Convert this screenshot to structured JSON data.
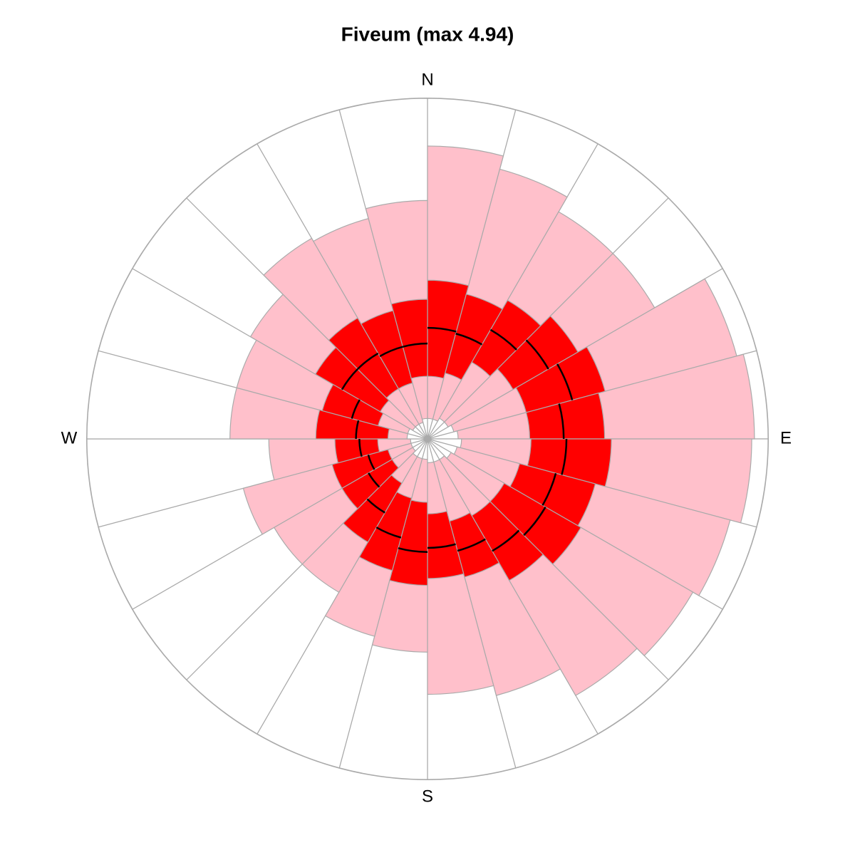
{
  "chart_data": {
    "type": "rose",
    "title": "Fiveum (max 4.94)",
    "directions": [
      "N",
      "E",
      "S",
      "W"
    ],
    "rlim": [
      0,
      5
    ],
    "min": [
      0.3,
      0.3,
      0.35,
      0.35,
      0.4,
      0.45,
      0.5,
      0.45,
      0.4,
      0.35,
      0.35,
      0.35,
      0.3,
      0.3,
      0.3,
      0.25,
      0.25,
      0.25,
      0.3,
      0.3,
      0.25,
      0.25,
      0.25,
      0.3
    ],
    "q25": [
      0.92,
      1.0,
      1.3,
      1.45,
      1.5,
      1.5,
      1.52,
      1.4,
      1.3,
      1.3,
      1.25,
      1.1,
      0.93,
      0.9,
      0.75,
      0.6,
      0.6,
      0.73,
      0.58,
      0.75,
      0.8,
      0.85,
      0.85,
      0.92
    ],
    "median": [
      1.63,
      1.6,
      1.85,
      2.05,
      2.2,
      2.0,
      2.04,
      1.95,
      2.0,
      1.9,
      1.7,
      1.6,
      1.66,
      1.5,
      1.25,
      1.0,
      0.9,
      1.0,
      1.05,
      1.15,
      1.45,
      1.45,
      1.4,
      1.4
    ],
    "q75": [
      2.33,
      2.2,
      2.35,
      2.55,
      2.7,
      2.6,
      2.7,
      2.55,
      2.6,
      2.4,
      2.1,
      2.05,
      2.15,
      2.0,
      1.75,
      1.45,
      1.45,
      1.36,
      1.64,
      1.6,
      1.9,
      2.05,
      1.95,
      2.05
    ],
    "q95": [
      4.3,
      4.1,
      3.85,
      3.85,
      4.7,
      4.8,
      4.76,
      4.6,
      4.5,
      4.35,
      3.9,
      3.75,
      3.13,
      3.0,
      2.6,
      2.6,
      2.8,
      2.33,
      2.9,
      2.9,
      3.0,
      3.4,
      3.35,
      3.5
    ],
    "max": [
      5,
      5,
      5,
      5,
      5,
      5,
      5,
      5,
      5,
      5,
      5,
      5,
      5,
      5,
      5,
      5,
      5,
      5,
      5,
      5,
      5,
      5,
      5,
      5
    ],
    "fills": {
      "max": "#ffffff",
      "q95": "#ffc0cb",
      "q75": "#ff0000",
      "q25": "#ffc0cb",
      "min": "#ffffff"
    },
    "median_color": "#000000"
  }
}
